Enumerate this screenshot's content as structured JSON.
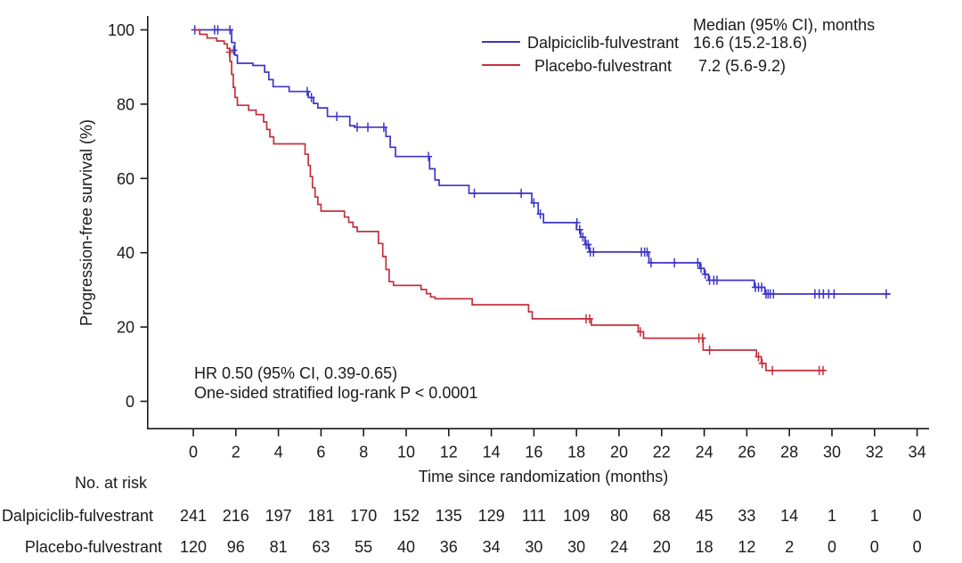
{
  "chart_data": {
    "type": "line",
    "subtype": "kaplan-meier-step",
    "title": "",
    "xlabel": "Time since randomization (months)",
    "ylabel": "Progression-free survival (%)",
    "xlim": [
      0,
      34.6
    ],
    "ylim": [
      0,
      100
    ],
    "xticks": [
      0,
      2,
      4,
      6,
      8,
      10,
      12,
      14,
      16,
      18,
      20,
      22,
      24,
      26,
      28,
      30,
      32,
      34
    ],
    "yticks": [
      0,
      20,
      40,
      60,
      80,
      100
    ],
    "grid": false,
    "legend_position": "top-right",
    "legend_title": "Median (95% CI), months",
    "axis_color": "#1a1a1a",
    "annotations": [
      "HR 0.50 (95% CI, 0.39-0.65)",
      "One-sided stratified log-rank P < 0.0001"
    ],
    "hazard_ratio": "0.50",
    "hazard_ratio_ci": "0.39-0.65",
    "p_value": "< 0.0001",
    "series": [
      {
        "name": "Dalpiciclib-fulvestrant",
        "color": "#3c35c8",
        "median_label": "16.6 (15.2-18.6)",
        "median_months": 16.6,
        "median_ci": "15.2-18.6",
        "points": [
          [
            0,
            100
          ],
          [
            1.8,
            100
          ],
          [
            1.8,
            96.6
          ],
          [
            1.95,
            96.6
          ],
          [
            1.95,
            93.2
          ],
          [
            2.07,
            93.2
          ],
          [
            2.07,
            91
          ],
          [
            2.8,
            91
          ],
          [
            2.8,
            90.4
          ],
          [
            3.35,
            90.4
          ],
          [
            3.35,
            88.6
          ],
          [
            3.55,
            88.6
          ],
          [
            3.55,
            86.6
          ],
          [
            3.75,
            86.6
          ],
          [
            3.75,
            84.7
          ],
          [
            4.5,
            84.7
          ],
          [
            4.5,
            83.4
          ],
          [
            5.4,
            83.4
          ],
          [
            5.4,
            81.8
          ],
          [
            5.65,
            81.8
          ],
          [
            5.65,
            80.2
          ],
          [
            5.85,
            80.2
          ],
          [
            5.85,
            79
          ],
          [
            6.3,
            79
          ],
          [
            6.3,
            76.7
          ],
          [
            7.35,
            76.7
          ],
          [
            7.35,
            74.2
          ],
          [
            7.6,
            74.2
          ],
          [
            7.6,
            73.8
          ],
          [
            9.05,
            73.8
          ],
          [
            9.05,
            71.3
          ],
          [
            9.25,
            71.3
          ],
          [
            9.25,
            68.4
          ],
          [
            9.5,
            68.4
          ],
          [
            9.5,
            65.9
          ],
          [
            11.1,
            65.9
          ],
          [
            11.1,
            62.6
          ],
          [
            11.35,
            62.6
          ],
          [
            11.35,
            59.6
          ],
          [
            11.55,
            59.6
          ],
          [
            11.55,
            58.1
          ],
          [
            12.95,
            58.1
          ],
          [
            12.95,
            56
          ],
          [
            15.9,
            56
          ],
          [
            15.9,
            53.4
          ],
          [
            16.2,
            53.4
          ],
          [
            16.2,
            50.4
          ],
          [
            16.45,
            50.4
          ],
          [
            16.45,
            48.1
          ],
          [
            18.0,
            48.1
          ],
          [
            18.0,
            46.2
          ],
          [
            18.2,
            46.2
          ],
          [
            18.2,
            44.2
          ],
          [
            18.4,
            44.2
          ],
          [
            18.4,
            42.2
          ],
          [
            18.6,
            42.2
          ],
          [
            18.6,
            40.2
          ],
          [
            21.4,
            40.2
          ],
          [
            21.4,
            37.3
          ],
          [
            23.8,
            37.3
          ],
          [
            23.8,
            35.8
          ],
          [
            24.0,
            35.8
          ],
          [
            24.0,
            34.2
          ],
          [
            24.2,
            34.2
          ],
          [
            24.2,
            32.6
          ],
          [
            26.35,
            32.6
          ],
          [
            26.35,
            30.7
          ],
          [
            26.85,
            30.7
          ],
          [
            26.85,
            28.9
          ],
          [
            32.75,
            28.9
          ]
        ],
        "censor_marks": [
          [
            0.07,
            100
          ],
          [
            1.0,
            100
          ],
          [
            1.15,
            100
          ],
          [
            1.72,
            100
          ],
          [
            1.9,
            94.5
          ],
          [
            5.35,
            83.4
          ],
          [
            5.55,
            81.8
          ],
          [
            6.74,
            76.7
          ],
          [
            7.7,
            73.8
          ],
          [
            8.2,
            73.8
          ],
          [
            8.95,
            73.8
          ],
          [
            11.05,
            65.9
          ],
          [
            13.2,
            56
          ],
          [
            15.4,
            56
          ],
          [
            16.0,
            53.4
          ],
          [
            16.3,
            50.4
          ],
          [
            18.02,
            48.1
          ],
          [
            18.15,
            46.2
          ],
          [
            18.3,
            44.2
          ],
          [
            18.45,
            42.2
          ],
          [
            18.55,
            42.2
          ],
          [
            18.65,
            40.2
          ],
          [
            18.8,
            40.2
          ],
          [
            21.05,
            40.2
          ],
          [
            21.2,
            40.2
          ],
          [
            21.32,
            40.2
          ],
          [
            21.5,
            37.3
          ],
          [
            22.6,
            37.3
          ],
          [
            23.7,
            37.3
          ],
          [
            23.85,
            35.8
          ],
          [
            24.05,
            34.2
          ],
          [
            24.25,
            32.6
          ],
          [
            24.45,
            32.6
          ],
          [
            24.6,
            32.6
          ],
          [
            26.4,
            30.7
          ],
          [
            26.55,
            30.7
          ],
          [
            26.7,
            30.7
          ],
          [
            26.9,
            28.9
          ],
          [
            27.0,
            28.9
          ],
          [
            27.1,
            28.9
          ],
          [
            27.25,
            28.9
          ],
          [
            29.2,
            28.9
          ],
          [
            29.4,
            28.9
          ],
          [
            29.6,
            28.9
          ],
          [
            29.85,
            28.9
          ],
          [
            30.1,
            28.9
          ],
          [
            32.55,
            28.9
          ]
        ]
      },
      {
        "name": "Placebo-fulvestrant",
        "color": "#c4303c",
        "median_label": "7.2 (5.6-9.2)",
        "median_months": 7.2,
        "median_ci": "5.6-9.2",
        "points": [
          [
            0,
            100
          ],
          [
            0.3,
            100
          ],
          [
            0.3,
            98.8
          ],
          [
            0.65,
            98.8
          ],
          [
            0.65,
            97.8
          ],
          [
            1.1,
            97.8
          ],
          [
            1.1,
            97
          ],
          [
            1.45,
            97
          ],
          [
            1.45,
            96.2
          ],
          [
            1.6,
            96.2
          ],
          [
            1.6,
            95
          ],
          [
            1.72,
            95
          ],
          [
            1.72,
            91.5
          ],
          [
            1.8,
            91.5
          ],
          [
            1.8,
            88
          ],
          [
            1.88,
            88
          ],
          [
            1.88,
            84.5
          ],
          [
            1.96,
            84.5
          ],
          [
            1.96,
            81.8
          ],
          [
            2.07,
            81.8
          ],
          [
            2.07,
            79.7
          ],
          [
            2.6,
            79.7
          ],
          [
            2.6,
            78.4
          ],
          [
            2.95,
            78.4
          ],
          [
            2.95,
            77.2
          ],
          [
            3.3,
            77.2
          ],
          [
            3.3,
            75.2
          ],
          [
            3.45,
            75.2
          ],
          [
            3.45,
            73.2
          ],
          [
            3.6,
            73.2
          ],
          [
            3.6,
            71.2
          ],
          [
            3.78,
            71.2
          ],
          [
            3.78,
            69.3
          ],
          [
            5.25,
            69.3
          ],
          [
            5.25,
            66.5
          ],
          [
            5.4,
            66.5
          ],
          [
            5.4,
            63.5
          ],
          [
            5.5,
            63.5
          ],
          [
            5.5,
            60.5
          ],
          [
            5.6,
            60.5
          ],
          [
            5.6,
            57.5
          ],
          [
            5.72,
            57.5
          ],
          [
            5.72,
            55
          ],
          [
            5.85,
            55
          ],
          [
            5.85,
            53
          ],
          [
            6.0,
            53
          ],
          [
            6.0,
            51.2
          ],
          [
            7.1,
            51.2
          ],
          [
            7.1,
            49.6
          ],
          [
            7.3,
            49.6
          ],
          [
            7.3,
            48.2
          ],
          [
            7.5,
            48.2
          ],
          [
            7.5,
            46.9
          ],
          [
            7.7,
            46.9
          ],
          [
            7.7,
            45.7
          ],
          [
            8.7,
            45.7
          ],
          [
            8.7,
            42.5
          ],
          [
            8.9,
            42.5
          ],
          [
            8.9,
            39
          ],
          [
            9.05,
            39
          ],
          [
            9.05,
            35.5
          ],
          [
            9.2,
            35.5
          ],
          [
            9.2,
            32.2
          ],
          [
            9.4,
            32.2
          ],
          [
            9.4,
            31.2
          ],
          [
            10.7,
            31.2
          ],
          [
            10.7,
            30.1
          ],
          [
            10.95,
            30.1
          ],
          [
            10.95,
            29
          ],
          [
            11.15,
            29
          ],
          [
            11.15,
            28.1
          ],
          [
            11.35,
            28.1
          ],
          [
            11.35,
            27.6
          ],
          [
            13.1,
            27.6
          ],
          [
            13.1,
            26
          ],
          [
            15.75,
            26
          ],
          [
            15.75,
            24.1
          ],
          [
            15.92,
            24.1
          ],
          [
            15.92,
            22.2
          ],
          [
            18.7,
            22.2
          ],
          [
            18.7,
            20.5
          ],
          [
            20.9,
            20.5
          ],
          [
            20.9,
            18.7
          ],
          [
            21.15,
            18.7
          ],
          [
            21.15,
            17
          ],
          [
            23.95,
            17
          ],
          [
            23.95,
            13.8
          ],
          [
            26.45,
            13.8
          ],
          [
            26.45,
            12
          ],
          [
            26.68,
            12
          ],
          [
            26.68,
            10.2
          ],
          [
            26.9,
            10.2
          ],
          [
            26.9,
            8.3
          ],
          [
            29.7,
            8.3
          ]
        ],
        "censor_marks": [
          [
            1.7,
            94
          ],
          [
            18.45,
            22.2
          ],
          [
            18.62,
            22.2
          ],
          [
            21.0,
            18.7
          ],
          [
            23.75,
            17
          ],
          [
            23.92,
            17
          ],
          [
            24.25,
            13.8
          ],
          [
            26.55,
            12
          ],
          [
            26.72,
            10.2
          ],
          [
            27.2,
            8.3
          ],
          [
            29.4,
            8.3
          ],
          [
            29.58,
            8.3
          ]
        ]
      }
    ]
  },
  "risk_table": {
    "title": "No. at risk",
    "times": [
      0,
      2,
      4,
      6,
      8,
      10,
      12,
      14,
      16,
      18,
      20,
      22,
      24,
      26,
      28,
      30,
      32,
      34
    ],
    "rows": [
      {
        "label": "Dalpiciclib-fulvestrant",
        "counts": [
          241,
          216,
          197,
          181,
          170,
          152,
          135,
          129,
          111,
          109,
          80,
          68,
          45,
          33,
          14,
          1,
          1,
          0
        ]
      },
      {
        "label": "Placebo-fulvestrant",
        "counts": [
          120,
          96,
          81,
          63,
          55,
          40,
          36,
          34,
          30,
          30,
          24,
          20,
          18,
          12,
          2,
          0,
          0,
          0
        ]
      }
    ]
  }
}
